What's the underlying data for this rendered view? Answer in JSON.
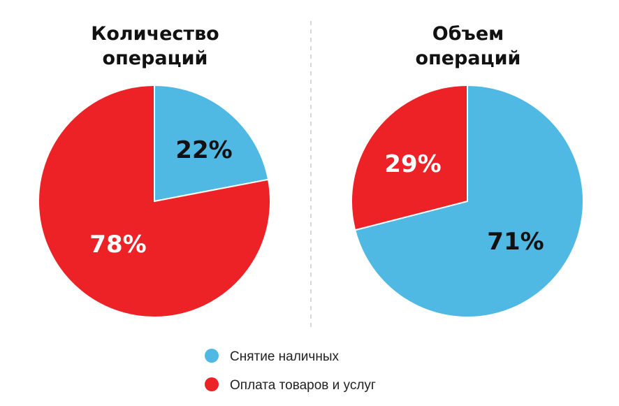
{
  "chart_data": [
    {
      "type": "pie",
      "title": [
        "Количество",
        "операций"
      ],
      "categories": [
        "Снятие наличных",
        "Оплата товаров и услуг"
      ],
      "values": [
        22,
        78
      ],
      "value_labels": [
        "22%",
        "78%"
      ],
      "label_colors": [
        "#111111",
        "#ffffff"
      ]
    },
    {
      "type": "pie",
      "title": [
        "Объем",
        "операций"
      ],
      "categories": [
        "Снятие наличных",
        "Оплата товаров и услуг"
      ],
      "values": [
        71,
        29
      ],
      "value_labels": [
        "71%",
        "29%"
      ],
      "label_colors": [
        "#111111",
        "#ffffff"
      ]
    }
  ],
  "legend": {
    "placement": "bottom-center",
    "items": [
      {
        "label": "Снятие наличных",
        "color": "#4FB8E3"
      },
      {
        "label": "Оплата товаров и услуг",
        "color": "#EC2227"
      }
    ]
  },
  "colors": {
    "cash": "#4FB8E3",
    "purchases": "#EC2227",
    "divider": "#cccccc"
  }
}
